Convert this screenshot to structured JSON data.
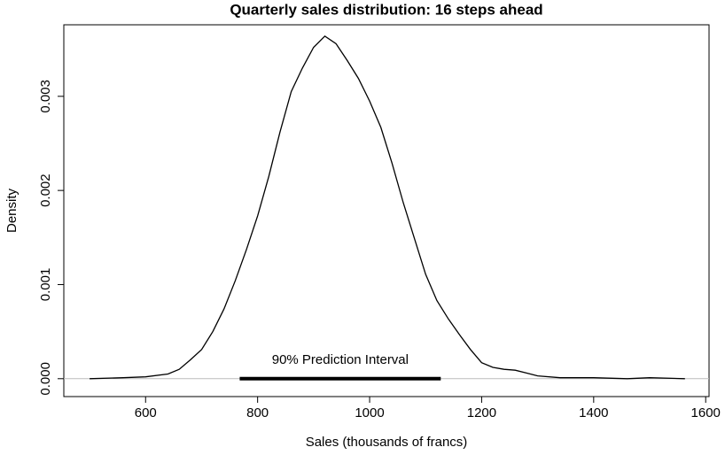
{
  "chart_data": {
    "type": "density",
    "title": "Quarterly sales distribution: 16 steps ahead",
    "x_label": "Sales (thousands of francs)",
    "y_label": "Density",
    "x": [
      500,
      560,
      600,
      640,
      660,
      680,
      700,
      720,
      740,
      760,
      780,
      800,
      820,
      840,
      860,
      880,
      900,
      920,
      940,
      960,
      980,
      1000,
      1020,
      1040,
      1060,
      1080,
      1100,
      1120,
      1140,
      1160,
      1180,
      1200,
      1220,
      1240,
      1260,
      1280,
      1300,
      1340,
      1400,
      1460,
      1500,
      1563
    ],
    "values": [
      0,
      1e-05,
      2e-05,
      5e-05,
      0.0001,
      0.0002,
      0.00031,
      0.0005,
      0.00074,
      0.00104,
      0.00137,
      0.00173,
      0.00215,
      0.00262,
      0.00305,
      0.0033,
      0.00352,
      0.00364,
      0.00356,
      0.00338,
      0.00319,
      0.00295,
      0.00267,
      0.00229,
      0.00187,
      0.00149,
      0.00111,
      0.00083,
      0.00064,
      0.00047,
      0.00031,
      0.00017,
      0.00012,
      0.0001,
      9e-05,
      6e-05,
      3e-05,
      1e-05,
      1e-05,
      0,
      1e-05,
      0
    ],
    "color": "#000000",
    "interval": {
      "label": "90% Prediction Interval",
      "lower": 768,
      "upper": 1127
    },
    "xlim": [
      454,
      1606
    ],
    "ylim": [
      -0.00019,
      0.00376
    ],
    "xticks": [
      600,
      800,
      1000,
      1200,
      1400,
      1600
    ],
    "yticks": [
      {
        "value": 0,
        "label": "0.000"
      },
      {
        "value": 0.001,
        "label": "0.001"
      },
      {
        "value": 0.002,
        "label": "0.002"
      },
      {
        "value": 0.003,
        "label": "0.003"
      }
    ]
  }
}
